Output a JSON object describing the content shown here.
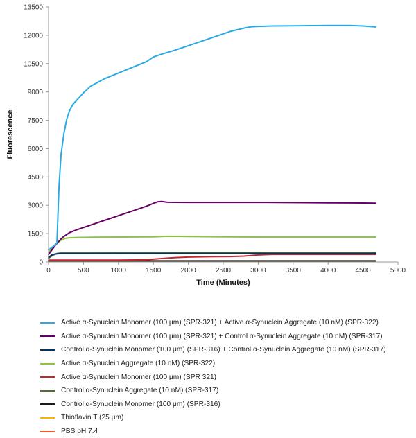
{
  "chart_data": {
    "type": "line",
    "title": "",
    "xlabel": "Time (Minutes)",
    "ylabel": "Fluorescence",
    "xlim": [
      0,
      5000
    ],
    "ylim": [
      0,
      13500
    ],
    "xticks": [
      0,
      500,
      1000,
      1500,
      2000,
      2500,
      3000,
      3500,
      4000,
      4500,
      5000
    ],
    "yticks": [
      0,
      1500,
      3000,
      4500,
      6000,
      7500,
      9000,
      10500,
      12000,
      13500
    ],
    "x_tick_labels": [
      "0",
      "500",
      "1000",
      "1500",
      "2000",
      "2500",
      "3000",
      "3500",
      "4000",
      "4500",
      "5000"
    ],
    "y_tick_labels": [
      "0",
      "1500",
      "3000",
      "4500",
      "6000",
      "7500",
      "9000",
      "10500",
      "12000",
      "13500"
    ],
    "legend_position": "bottom",
    "series": [
      {
        "name": "Active α-Synuclein Monomer (100 μm) (SPR-321) + Active α-Synuclein Aggregate (10 nM) (SPR-322)",
        "color": "#29abe2",
        "x": [
          0,
          60,
          120,
          150,
          180,
          220,
          260,
          300,
          350,
          400,
          500,
          600,
          800,
          1000,
          1200,
          1400,
          1500,
          1600,
          1800,
          2000,
          2200,
          2400,
          2600,
          2800,
          2900,
          3000,
          3200,
          3500,
          4000,
          4300,
          4500,
          4680
        ],
        "values": [
          650,
          800,
          1000,
          4000,
          5700,
          6800,
          7550,
          8000,
          8350,
          8550,
          8950,
          9300,
          9700,
          10000,
          10300,
          10600,
          10850,
          10980,
          11200,
          11450,
          11700,
          11950,
          12200,
          12380,
          12450,
          12470,
          12490,
          12500,
          12520,
          12520,
          12490,
          12440
        ]
      },
      {
        "name": "Active α-Synuclein Monomer (100 μm) (SPR-321) + Control α-Synuclein Aggregate (10 nM) (SPR-317)",
        "color": "#660066",
        "x": [
          0,
          100,
          200,
          300,
          400,
          600,
          800,
          1000,
          1200,
          1400,
          1500,
          1560,
          1620,
          1700,
          2000,
          2500,
          3000,
          3500,
          4000,
          4500,
          4680
        ],
        "values": [
          400,
          900,
          1300,
          1550,
          1700,
          1950,
          2200,
          2450,
          2700,
          2950,
          3100,
          3180,
          3200,
          3160,
          3150,
          3150,
          3150,
          3140,
          3130,
          3120,
          3110
        ]
      },
      {
        "name": "Control α-Synuclein Monomer (100 μm) (SPR-316) + Control α-Synuclein Aggregate (10 nM) (SPR-317)",
        "color": "#003366",
        "x": [
          0,
          60,
          120,
          150,
          200,
          300,
          500,
          1000,
          1500,
          2000,
          2500,
          3000,
          3500,
          4000,
          4500,
          4680
        ],
        "values": [
          250,
          400,
          430,
          440,
          440,
          440,
          440,
          445,
          445,
          450,
          450,
          450,
          450,
          450,
          450,
          450
        ]
      },
      {
        "name": "Active α-Synuclein Aggregate (10 nM) (SPR-322)",
        "color": "#8cc63f",
        "x": [
          0,
          60,
          120,
          180,
          240,
          300,
          400,
          600,
          1000,
          1500,
          1700,
          2000,
          2500,
          3000,
          3500,
          4000,
          4500,
          4680
        ],
        "values": [
          500,
          800,
          1000,
          1150,
          1250,
          1280,
          1300,
          1310,
          1320,
          1330,
          1360,
          1350,
          1330,
          1320,
          1320,
          1320,
          1320,
          1320
        ]
      },
      {
        "name": "Active α-Synuclein Monomer (100 μm) (SPR 321)",
        "color": "#c1272d",
        "x": [
          0,
          500,
          1000,
          1400,
          1600,
          1800,
          2000,
          2300,
          2600,
          2800,
          3000,
          3200,
          3500,
          4000,
          4500,
          4680
        ],
        "values": [
          100,
          100,
          100,
          120,
          180,
          230,
          260,
          280,
          290,
          310,
          370,
          400,
          400,
          400,
          400,
          400
        ]
      },
      {
        "name": "Control α-Synuclein Aggregate (10 nM) (SPR-317)",
        "color": "#556b2f",
        "x": [
          0,
          60,
          120,
          180,
          300,
          500,
          1000,
          1500,
          2000,
          2500,
          3000,
          3500,
          4000,
          4500,
          4680
        ],
        "values": [
          200,
          350,
          450,
          480,
          480,
          480,
          490,
          500,
          510,
          510,
          510,
          510,
          510,
          510,
          510
        ]
      },
      {
        "name": "Control α-Synuclein Monomer (100 μm) (SPR-316)",
        "color": "#1a1a1a",
        "x": [
          0,
          500,
          1000,
          1500,
          2000,
          2500,
          3000,
          3500,
          4000,
          4500,
          4680
        ],
        "values": [
          60,
          60,
          60,
          60,
          60,
          60,
          60,
          60,
          60,
          60,
          60
        ]
      },
      {
        "name": "Thioflavin T (25 μm)",
        "color": "#f7b500",
        "x": [
          0,
          1000,
          2000,
          3000,
          4000,
          4680
        ],
        "values": [
          40,
          40,
          40,
          40,
          40,
          40
        ]
      },
      {
        "name": "PBS pH 7.4",
        "color": "#f15a24",
        "x": [
          0,
          1000,
          2000,
          3000,
          4000,
          4680
        ],
        "values": [
          25,
          25,
          25,
          25,
          25,
          25
        ]
      }
    ]
  }
}
